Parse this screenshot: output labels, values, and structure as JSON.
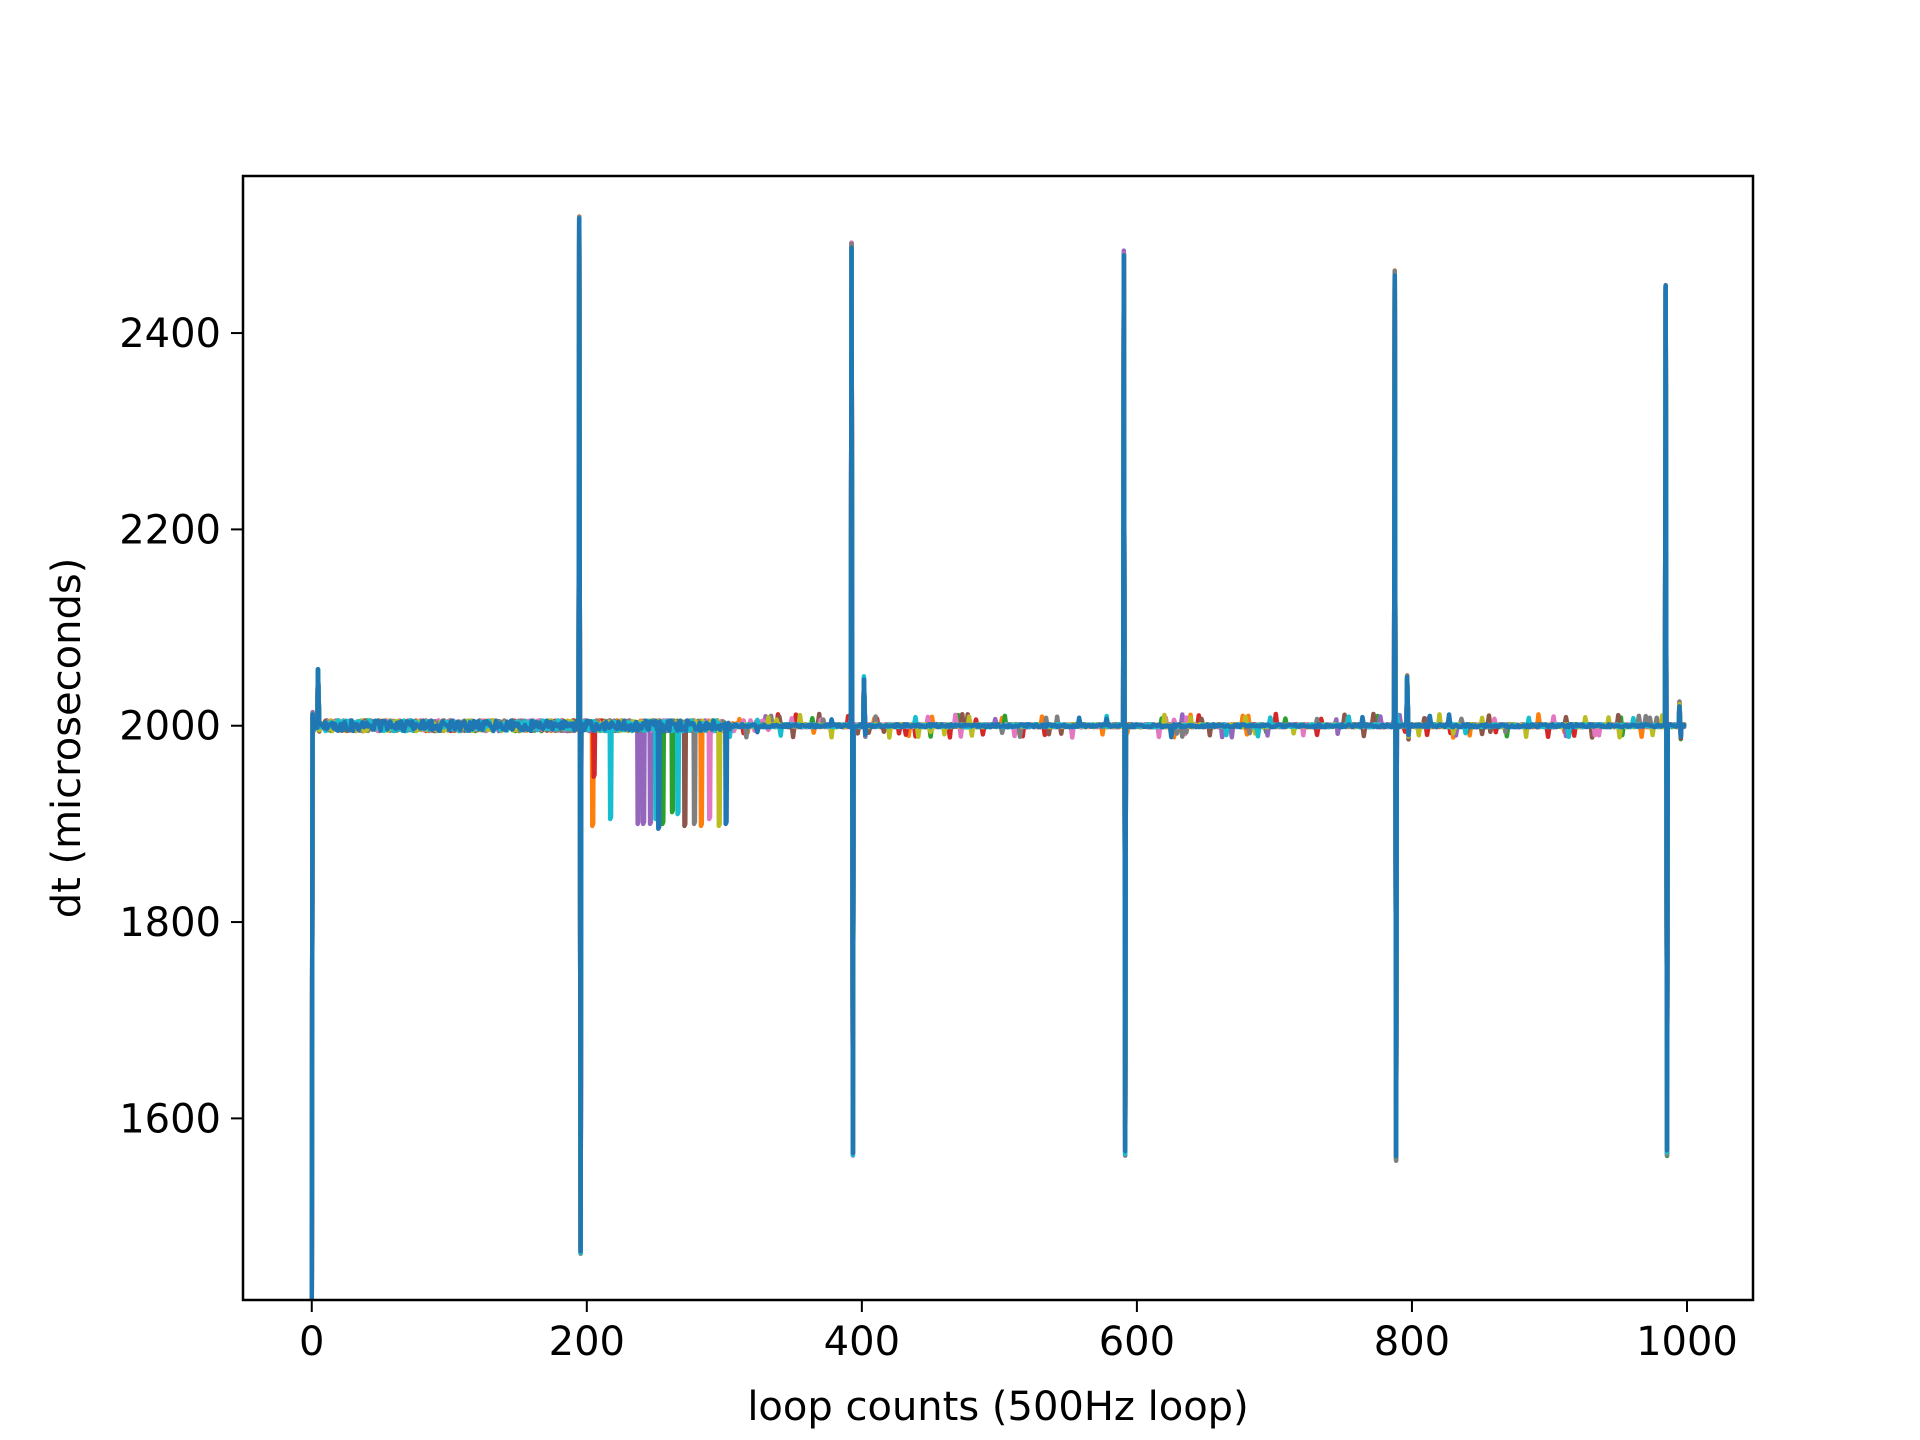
{
  "chart_data": {
    "type": "line",
    "title": "",
    "xlabel": "loop counts (500Hz loop)",
    "ylabel": "dt (microseconds)",
    "xlim": [
      -50,
      1048
    ],
    "ylim": [
      1415,
      2560
    ],
    "xticks": [
      0,
      200,
      400,
      600,
      800,
      1000
    ],
    "yticks": [
      1600,
      1800,
      2000,
      2200,
      2400
    ],
    "grid": false,
    "legend": "none",
    "baseline": 2000,
    "x_max": 998,
    "series": [
      {
        "color": "#ff7f0e",
        "dips": [
          [
            204,
            1898
          ],
          [
            283,
            1898
          ]
        ],
        "jitter_to": 310
      },
      {
        "color": "#2ca02c",
        "dips": [
          [
            255,
            1900
          ],
          [
            262,
            1912
          ]
        ],
        "jitter_to": 305
      },
      {
        "color": "#d62728",
        "dips": [
          [
            205,
            1948
          ]
        ],
        "jitter_to": 300
      },
      {
        "color": "#9467bd",
        "dips": [
          [
            237,
            1900
          ],
          [
            241,
            1900
          ],
          [
            246,
            1900
          ]
        ],
        "jitter_to": 300
      },
      {
        "color": "#8c564b",
        "dips": [
          [
            271,
            1898
          ]
        ],
        "jitter_to": 300
      },
      {
        "color": "#e377c2",
        "dips": [
          [
            289,
            1905
          ]
        ],
        "jitter_to": 335
      },
      {
        "color": "#7f7f7f",
        "dips": [
          [
            278,
            1900
          ]
        ],
        "jitter_to": 300
      },
      {
        "color": "#bcbd22",
        "dips": [
          [
            296,
            1898
          ]
        ],
        "jitter_to": 300
      },
      {
        "color": "#17becf",
        "dips": [
          [
            217,
            1905
          ],
          [
            250,
            1905
          ],
          [
            266,
            1910
          ]
        ],
        "jitter_to": 300
      },
      {
        "color": "#1f77b4",
        "dips": [
          [
            252,
            1895
          ],
          [
            301,
            1900
          ]
        ],
        "jitter_to": 305
      }
    ],
    "events": [
      {
        "x": 0,
        "low": 1420,
        "high": 2010
      },
      {
        "x": 5,
        "low": 1998,
        "high": 2055
      },
      {
        "x": 195,
        "low": 1465,
        "high": 2515
      },
      {
        "x": 393,
        "low": 1565,
        "high": 2488
      },
      {
        "x": 402,
        "low": 1992,
        "high": 2048
      },
      {
        "x": 591,
        "low": 1565,
        "high": 2480
      },
      {
        "x": 788,
        "low": 1560,
        "high": 2460
      },
      {
        "x": 797,
        "low": 1990,
        "high": 2048
      },
      {
        "x": 985,
        "low": 1565,
        "high": 2445
      },
      {
        "x": 995,
        "low": 1990,
        "high": 2022
      }
    ]
  }
}
